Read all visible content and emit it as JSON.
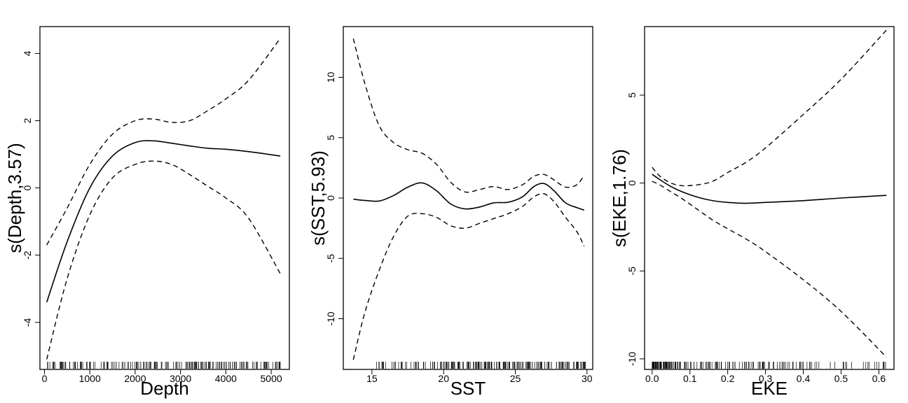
{
  "chart_data": [
    {
      "type": "line",
      "xlabel": "Depth",
      "ylabel": "s(Depth,3.57)",
      "xlim": [
        -100,
        5400
      ],
      "ylim": [
        -5.4,
        4.8
      ],
      "xticks": [
        0,
        1000,
        2000,
        3000,
        4000,
        5000
      ],
      "xtick_labels": [
        "0",
        "1000",
        "2000",
        "3000",
        "4000",
        "5000"
      ],
      "yticks": [
        -4,
        -2,
        0,
        2,
        4
      ],
      "ytick_labels": [
        "-4",
        "-2",
        "0",
        "2",
        "4"
      ],
      "series": [
        {
          "role": "fit",
          "style": "solid",
          "x": [
            50,
            500,
            1000,
            1500,
            2000,
            2400,
            2800,
            3200,
            3600,
            4000,
            4500,
            5200
          ],
          "y": [
            -3.4,
            -1.6,
            0.0,
            0.95,
            1.35,
            1.4,
            1.33,
            1.25,
            1.18,
            1.15,
            1.08,
            0.95
          ]
        },
        {
          "role": "upper_band",
          "style": "dashed",
          "x": [
            50,
            500,
            1000,
            1500,
            2000,
            2400,
            2800,
            3200,
            3600,
            4000,
            4500,
            5200
          ],
          "y": [
            -1.7,
            -0.6,
            0.7,
            1.6,
            2.0,
            2.05,
            1.95,
            2.0,
            2.3,
            2.65,
            3.2,
            4.45
          ]
        },
        {
          "role": "lower_band",
          "style": "dashed",
          "x": [
            50,
            500,
            1000,
            1500,
            2000,
            2400,
            2800,
            3200,
            3600,
            4000,
            4500,
            5200
          ],
          "y": [
            -5.1,
            -2.7,
            -0.8,
            0.3,
            0.7,
            0.8,
            0.7,
            0.4,
            0.05,
            -0.3,
            -0.9,
            -2.55
          ]
        }
      ],
      "rug": {
        "min": 50,
        "max": 5200,
        "count": 190,
        "density": "uniform"
      }
    },
    {
      "type": "line",
      "xlabel": "SST",
      "ylabel": "s(SST,5.93)",
      "xlim": [
        13.0,
        30.4
      ],
      "ylim": [
        -14.2,
        14.2
      ],
      "xticks": [
        15,
        20,
        25,
        30
      ],
      "xtick_labels": [
        "15",
        "20",
        "25",
        "30"
      ],
      "yticks": [
        -10,
        -5,
        0,
        5,
        10
      ],
      "ytick_labels": [
        "-10",
        "-5",
        "0",
        "5",
        "10"
      ],
      "series": [
        {
          "role": "fit",
          "style": "solid",
          "x": [
            13.7,
            14.5,
            15.5,
            16.5,
            17.5,
            18.5,
            19.5,
            20.5,
            21.5,
            22.5,
            23.5,
            24.5,
            25.5,
            26.3,
            27.0,
            27.7,
            28.5,
            29.3,
            29.8
          ],
          "y": [
            -0.1,
            -0.2,
            -0.25,
            0.2,
            0.9,
            1.25,
            0.6,
            -0.5,
            -0.9,
            -0.75,
            -0.4,
            -0.35,
            0.1,
            0.95,
            1.2,
            0.6,
            -0.4,
            -0.8,
            -1.0
          ]
        },
        {
          "role": "upper_band",
          "style": "dashed",
          "x": [
            13.7,
            14.5,
            15.5,
            16.5,
            17.5,
            18.5,
            19.5,
            20.5,
            21.5,
            22.5,
            23.5,
            24.5,
            25.5,
            26.3,
            27.0,
            27.7,
            28.5,
            29.3,
            29.8
          ],
          "y": [
            13.2,
            9.5,
            6.0,
            4.6,
            4.0,
            3.7,
            2.8,
            1.3,
            0.5,
            0.7,
            0.95,
            0.7,
            1.1,
            1.8,
            1.95,
            1.5,
            0.9,
            1.1,
            1.9
          ]
        },
        {
          "role": "lower_band",
          "style": "dashed",
          "x": [
            13.7,
            14.5,
            15.5,
            16.5,
            17.5,
            18.5,
            19.5,
            20.5,
            21.5,
            22.5,
            23.5,
            24.5,
            25.5,
            26.3,
            27.0,
            27.7,
            28.5,
            29.3,
            29.8
          ],
          "y": [
            -13.4,
            -9.5,
            -6.0,
            -3.2,
            -1.5,
            -1.3,
            -1.6,
            -2.3,
            -2.5,
            -2.1,
            -1.7,
            -1.3,
            -0.7,
            0.1,
            0.35,
            -0.3,
            -1.6,
            -2.8,
            -4.0
          ]
        }
      ],
      "rug": {
        "min": 15.3,
        "max": 29.9,
        "count": 210,
        "density": "denser-above-20"
      }
    },
    {
      "type": "line",
      "xlabel": "EKE",
      "ylabel": "s(EKE,1.76)",
      "xlim": [
        -0.02,
        0.64
      ],
      "ylim": [
        -10.6,
        8.9
      ],
      "xticks": [
        0.0,
        0.1,
        0.2,
        0.3,
        0.4,
        0.5,
        0.6
      ],
      "xtick_labels": [
        "0.0",
        "0.1",
        "0.2",
        "0.3",
        "0.4",
        "0.5",
        "0.6"
      ],
      "yticks": [
        -10,
        -5,
        0,
        5
      ],
      "ytick_labels": [
        "-10",
        "-5",
        "0",
        "5"
      ],
      "series": [
        {
          "role": "fit",
          "style": "solid",
          "x": [
            0.0,
            0.02,
            0.05,
            0.08,
            0.12,
            0.16,
            0.2,
            0.25,
            0.3,
            0.4,
            0.5,
            0.62
          ],
          "y": [
            0.5,
            0.2,
            -0.2,
            -0.5,
            -0.8,
            -1.0,
            -1.1,
            -1.15,
            -1.1,
            -1.0,
            -0.85,
            -0.7
          ]
        },
        {
          "role": "upper_band",
          "style": "dashed",
          "x": [
            0.0,
            0.02,
            0.05,
            0.08,
            0.12,
            0.16,
            0.2,
            0.25,
            0.3,
            0.4,
            0.5,
            0.62
          ],
          "y": [
            0.9,
            0.4,
            0.0,
            -0.15,
            -0.1,
            0.1,
            0.6,
            1.2,
            2.0,
            3.9,
            5.9,
            8.7
          ]
        },
        {
          "role": "lower_band",
          "style": "dashed",
          "x": [
            0.0,
            0.02,
            0.05,
            0.08,
            0.12,
            0.16,
            0.2,
            0.25,
            0.3,
            0.4,
            0.5,
            0.62
          ],
          "y": [
            0.1,
            -0.1,
            -0.5,
            -0.9,
            -1.5,
            -2.1,
            -2.6,
            -3.2,
            -3.9,
            -5.5,
            -7.3,
            -9.9
          ]
        }
      ],
      "rug": {
        "min": 0.0,
        "max": 0.62,
        "count": 190,
        "density": "dense-near-zero"
      }
    }
  ]
}
